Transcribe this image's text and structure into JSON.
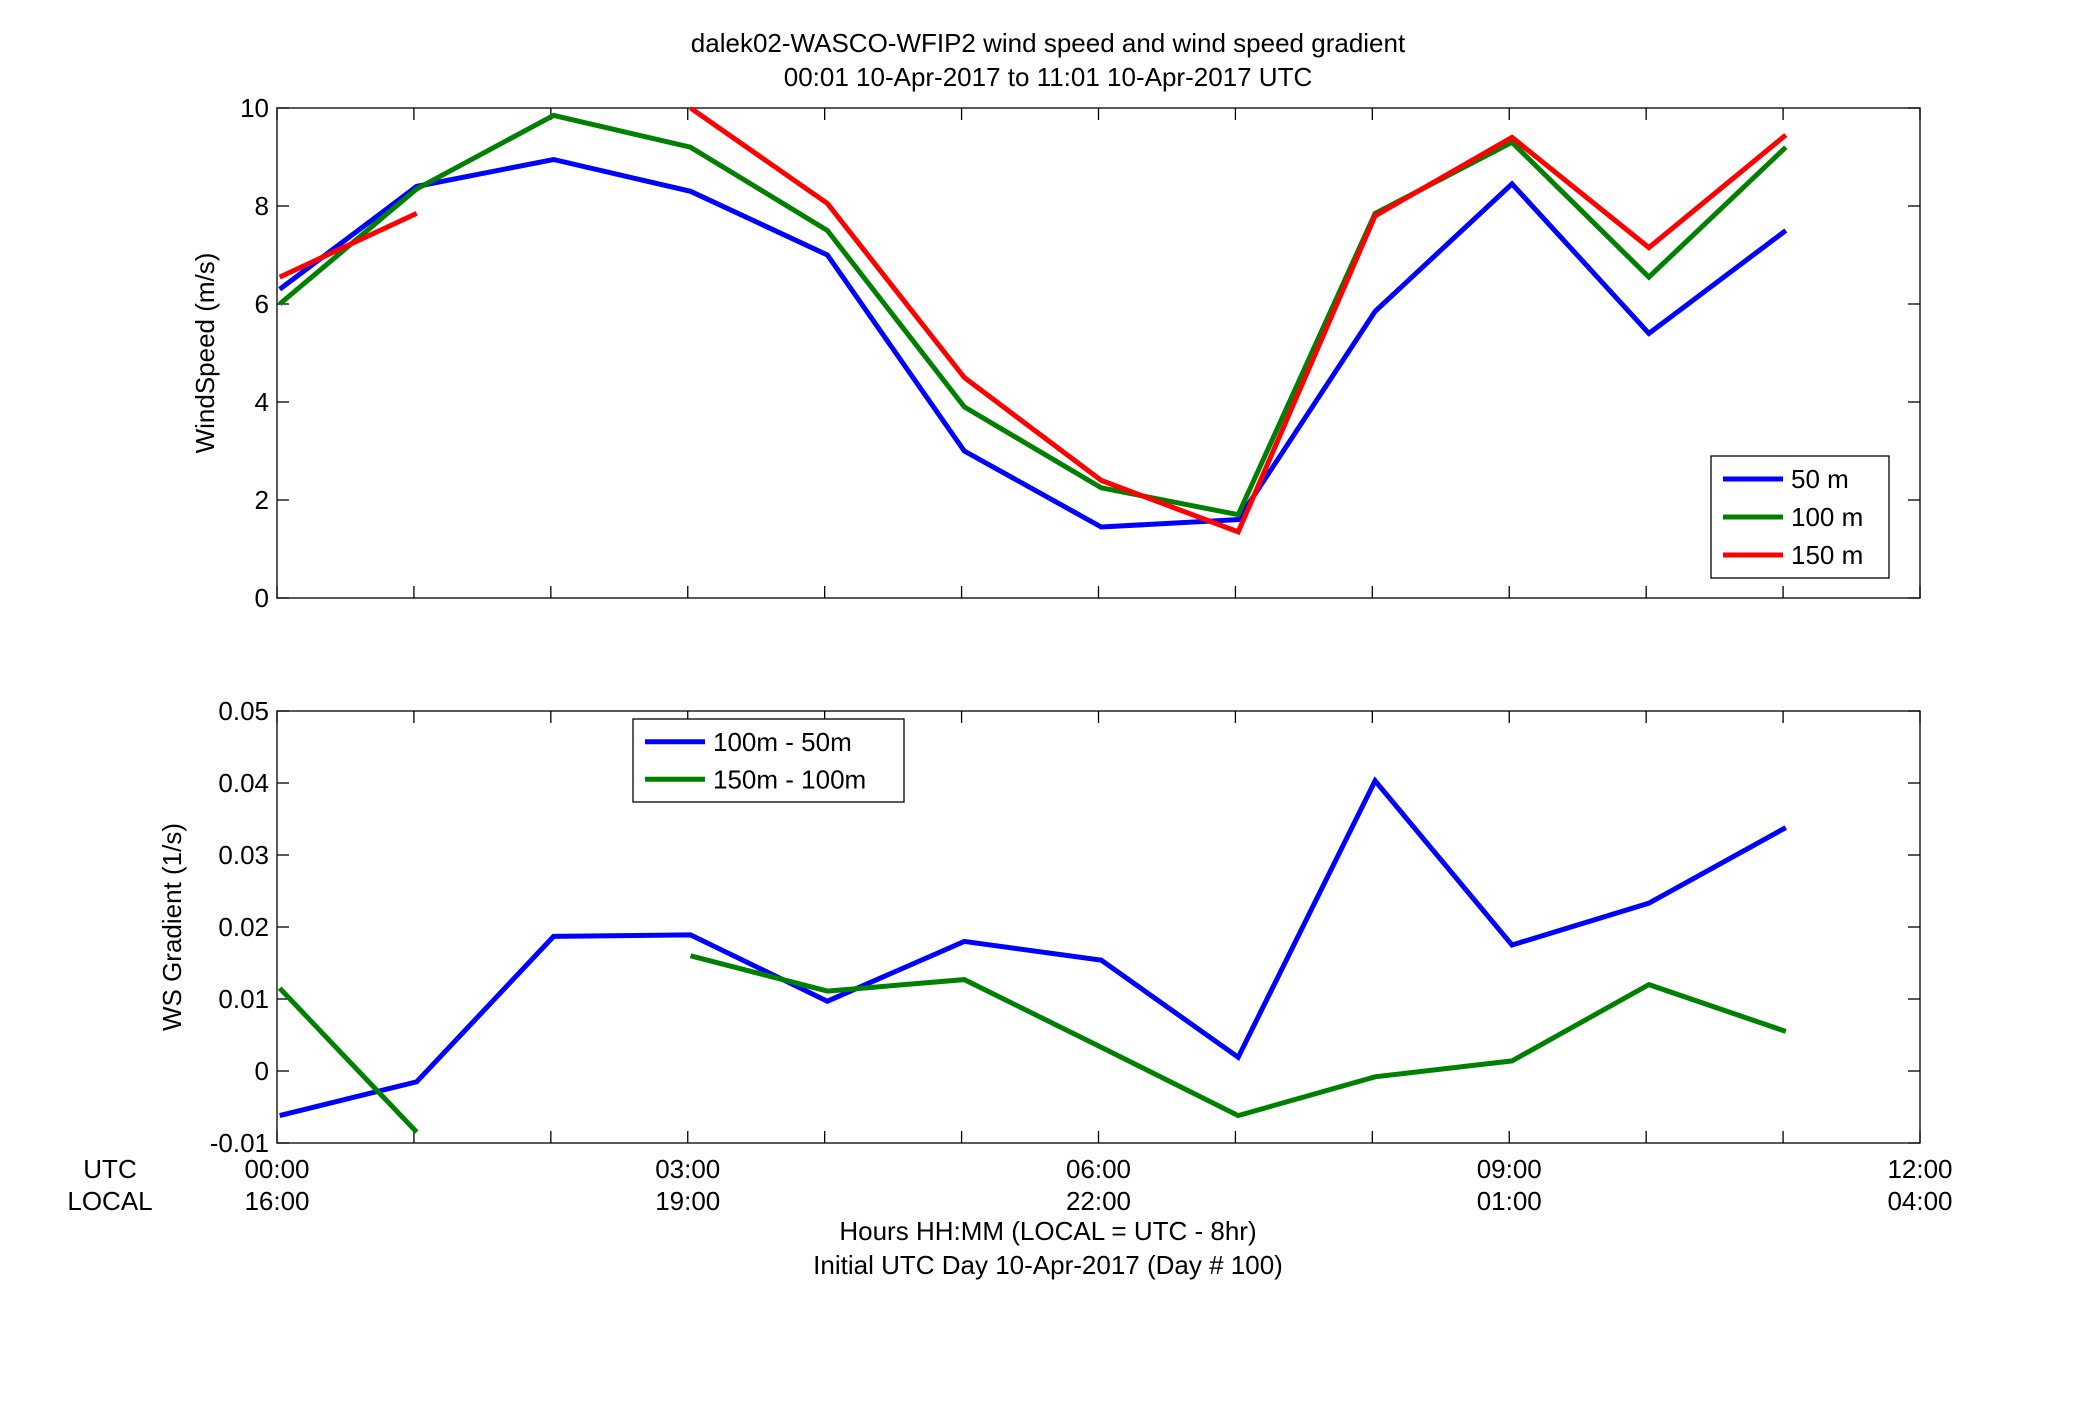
{
  "figure": {
    "title_line1": "dalek02-WASCO-WFIP2  wind speed and wind speed gradient",
    "title_line2": "00:01 10-Apr-2017 to 11:01 10-Apr-2017  UTC",
    "xlabel_line1": "Hours HH:MM  (LOCAL = UTC - 8hr)",
    "xlabel_line2": "Initial UTC Day 10-Apr-2017 (Day # 100)",
    "row_label_utc": "UTC",
    "row_label_local": "LOCAL",
    "xticks_utc": [
      "00:00",
      "03:00",
      "06:00",
      "09:00",
      "12:00"
    ],
    "xticks_local": [
      "16:00",
      "19:00",
      "22:00",
      "01:00",
      "04:00"
    ]
  },
  "chart_data": [
    {
      "type": "line",
      "ylabel": "WindSpeed (m/s)",
      "xlim": [
        0,
        12
      ],
      "ylim": [
        0,
        10
      ],
      "yticks": [
        "0",
        "2",
        "4",
        "6",
        "8",
        "10"
      ],
      "legend_position": "bottom-right",
      "x": [
        0.02,
        1.02,
        2.02,
        3.02,
        4.02,
        5.02,
        6.02,
        7.02,
        8.02,
        9.02,
        10.02,
        11.02
      ],
      "series": [
        {
          "name": "50 m",
          "color": "#0000ff",
          "values": [
            6.3,
            8.4,
            8.95,
            8.3,
            7.0,
            3.0,
            1.45,
            1.6,
            5.85,
            8.45,
            5.4,
            7.5
          ]
        },
        {
          "name": "100 m",
          "color": "#008000",
          "values": [
            6.0,
            8.35,
            9.85,
            9.2,
            7.5,
            3.9,
            2.25,
            1.7,
            7.85,
            9.3,
            6.55,
            9.2
          ]
        },
        {
          "name": "150 m",
          "color": "#ff0000",
          "values": [
            6.55,
            7.85,
            null,
            10.0,
            8.05,
            4.5,
            2.4,
            1.35,
            7.8,
            9.4,
            7.15,
            9.45
          ]
        }
      ]
    },
    {
      "type": "line",
      "ylabel": "WS Gradient (1/s)",
      "xlim": [
        0,
        12
      ],
      "ylim": [
        -0.01,
        0.05
      ],
      "yticks": [
        "-0.01",
        "0",
        "0.01",
        "0.02",
        "0.03",
        "0.04",
        "0.05"
      ],
      "legend_position": "top-left",
      "x": [
        0.02,
        1.02,
        2.02,
        3.02,
        4.02,
        5.02,
        6.02,
        7.02,
        8.02,
        9.02,
        10.02,
        11.02
      ],
      "series": [
        {
          "name": "100m - 50m",
          "color": "#0000ff",
          "values": [
            -0.0062,
            -0.0015,
            0.0187,
            0.0189,
            0.0097,
            0.018,
            0.0154,
            0.0019,
            0.0403,
            0.0175,
            0.0233,
            0.0338
          ]
        },
        {
          "name": "150m - 100m",
          "color": "#008000",
          "values": [
            0.0115,
            -0.0085,
            null,
            0.016,
            0.0111,
            0.0127,
            0.0033,
            -0.0062,
            -0.0008,
            0.0014,
            0.012,
            0.0055
          ]
        }
      ]
    }
  ]
}
